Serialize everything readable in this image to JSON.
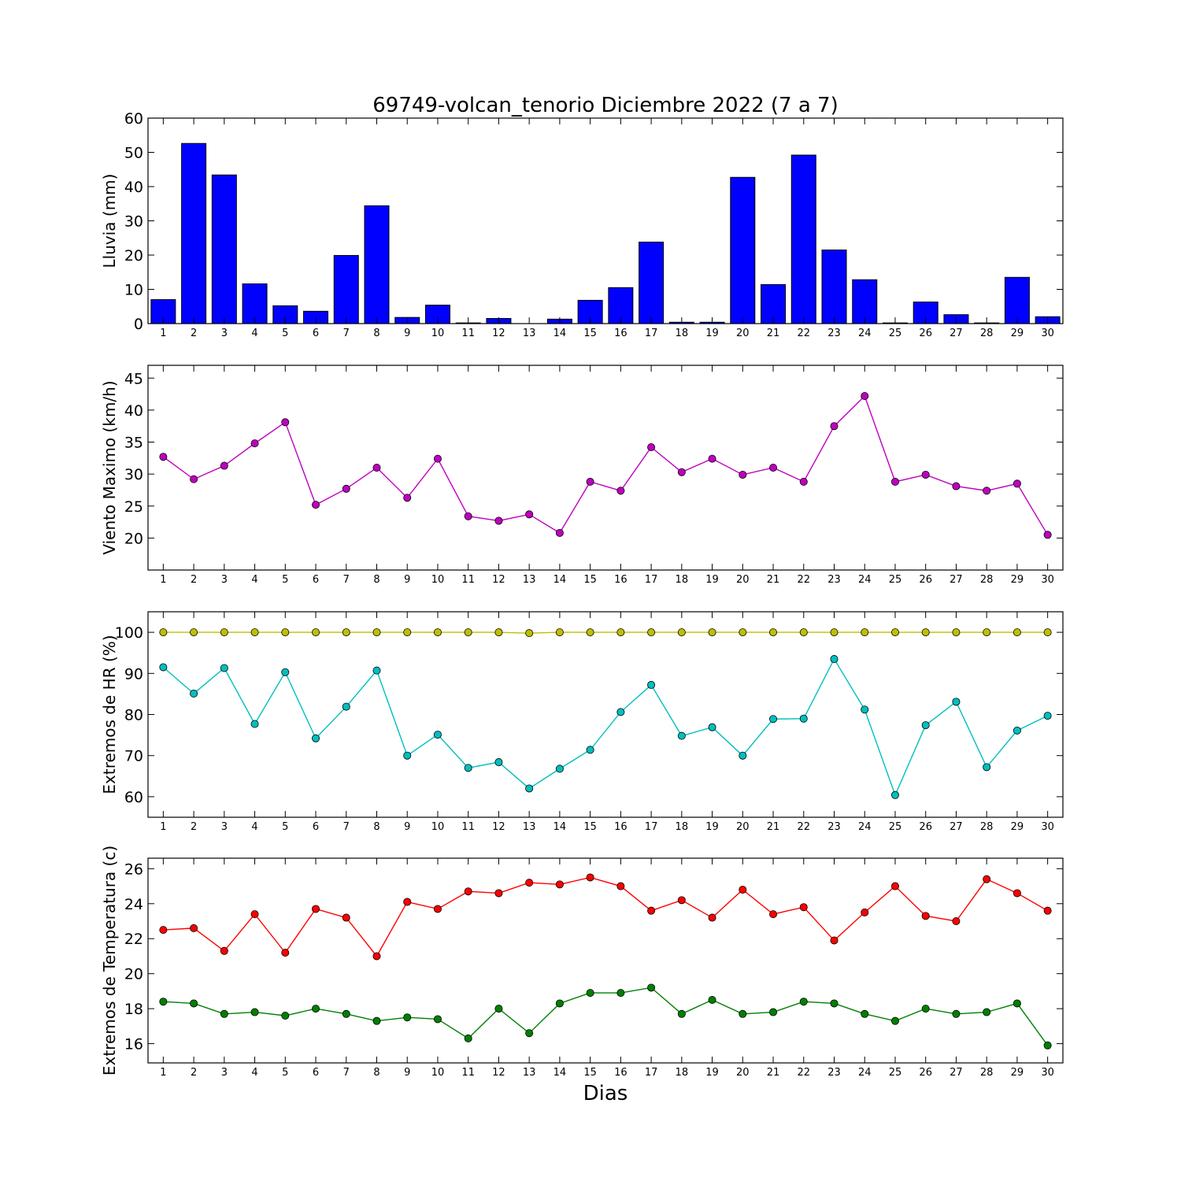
{
  "figure": {
    "title": "69749-volcan_tenorio Diciembre 2022  (7 a 7)",
    "xlabel": "Dias"
  },
  "chart_data": [
    {
      "id": "rain",
      "type": "bar",
      "ylabel": "Lluvia (mm)",
      "ylim": [
        0,
        60
      ],
      "yticks": [
        0,
        10,
        20,
        30,
        40,
        50,
        60
      ],
      "x": [
        1,
        2,
        3,
        4,
        5,
        6,
        7,
        8,
        9,
        10,
        11,
        12,
        13,
        14,
        15,
        16,
        17,
        18,
        19,
        20,
        21,
        22,
        23,
        24,
        25,
        26,
        27,
        28,
        29,
        30
      ],
      "xlim": [
        0.5,
        30.5
      ],
      "grid": false,
      "series": [
        {
          "color": "#0000ff",
          "values": [
            7.0,
            52.6,
            43.4,
            11.6,
            5.2,
            3.6,
            19.9,
            34.4,
            1.8,
            5.4,
            0.2,
            1.5,
            0.0,
            1.3,
            6.8,
            10.5,
            23.8,
            0.4,
            0.4,
            42.7,
            11.4,
            49.2,
            21.5,
            12.8,
            0.2,
            6.3,
            2.6,
            0.2,
            13.5,
            2.0
          ]
        }
      ]
    },
    {
      "id": "wind",
      "type": "line",
      "ylabel": "Viento Maximo (km/h)",
      "ylim": [
        15,
        47
      ],
      "yticks": [
        20,
        25,
        30,
        35,
        40,
        45
      ],
      "x": [
        1,
        2,
        3,
        4,
        5,
        6,
        7,
        8,
        9,
        10,
        11,
        12,
        13,
        14,
        15,
        16,
        17,
        18,
        19,
        20,
        21,
        22,
        23,
        24,
        25,
        26,
        27,
        28,
        29,
        30
      ],
      "xlim": [
        0.5,
        30.5
      ],
      "grid": false,
      "series": [
        {
          "color": "#bf00bf",
          "values": [
            32.7,
            29.2,
            31.3,
            34.8,
            38.1,
            25.2,
            27.7,
            31.0,
            26.3,
            32.4,
            23.4,
            22.7,
            23.7,
            20.8,
            28.8,
            27.4,
            34.2,
            30.3,
            32.4,
            29.9,
            31.0,
            28.8,
            37.5,
            42.2,
            28.8,
            29.9,
            28.1,
            27.4,
            28.5,
            20.5
          ]
        }
      ]
    },
    {
      "id": "humidity",
      "type": "line",
      "ylabel": "Extremos de HR (%)",
      "ylim": [
        55,
        105
      ],
      "yticks": [
        60,
        70,
        80,
        90,
        100
      ],
      "x": [
        1,
        2,
        3,
        4,
        5,
        6,
        7,
        8,
        9,
        10,
        11,
        12,
        13,
        14,
        15,
        16,
        17,
        18,
        19,
        20,
        21,
        22,
        23,
        24,
        25,
        26,
        27,
        28,
        29,
        30
      ],
      "xlim": [
        0.5,
        30.5
      ],
      "grid": false,
      "series": [
        {
          "color": "#bfbf00",
          "values": [
            100,
            100,
            100,
            100,
            100,
            100,
            100,
            100,
            100,
            100,
            100,
            100,
            99.8,
            100,
            100,
            100,
            100,
            100,
            100,
            100,
            100,
            100,
            100,
            100,
            100,
            100,
            100,
            100,
            100,
            100
          ]
        },
        {
          "color": "#00bfbf",
          "values": [
            91.5,
            85.1,
            91.3,
            77.7,
            90.3,
            74.2,
            81.9,
            90.7,
            70.0,
            75.1,
            67.0,
            68.4,
            62.0,
            66.8,
            71.4,
            80.6,
            87.2,
            74.8,
            76.9,
            70.0,
            78.9,
            79.0,
            93.5,
            81.2,
            60.4,
            77.4,
            83.1,
            67.2,
            76.1,
            79.7
          ]
        }
      ]
    },
    {
      "id": "temperature",
      "type": "line",
      "ylabel": "Extremos de Temperatura (c)",
      "ylim": [
        14.9,
        26.6
      ],
      "yticks": [
        16,
        18,
        20,
        22,
        24,
        26
      ],
      "x": [
        1,
        2,
        3,
        4,
        5,
        6,
        7,
        8,
        9,
        10,
        11,
        12,
        13,
        14,
        15,
        16,
        17,
        18,
        19,
        20,
        21,
        22,
        23,
        24,
        25,
        26,
        27,
        28,
        29,
        30
      ],
      "xlim": [
        0.5,
        30.5
      ],
      "grid": false,
      "series": [
        {
          "color": "#ff0000",
          "values": [
            22.5,
            22.6,
            21.3,
            23.4,
            21.2,
            23.7,
            23.2,
            21.0,
            24.1,
            23.7,
            24.7,
            24.6,
            25.2,
            25.1,
            25.5,
            25.0,
            23.6,
            24.2,
            23.2,
            24.8,
            23.4,
            23.8,
            21.9,
            23.5,
            25.0,
            23.3,
            23.0,
            25.4,
            24.6,
            23.6
          ]
        },
        {
          "color": "#008000",
          "values": [
            18.4,
            18.3,
            17.7,
            17.8,
            17.6,
            18.0,
            17.7,
            17.3,
            17.5,
            17.4,
            16.3,
            18.0,
            16.6,
            18.3,
            18.9,
            18.9,
            19.2,
            17.7,
            18.5,
            17.7,
            17.8,
            18.4,
            18.3,
            17.7,
            17.3,
            18.0,
            17.7,
            17.8,
            18.3,
            15.9
          ]
        }
      ]
    }
  ]
}
